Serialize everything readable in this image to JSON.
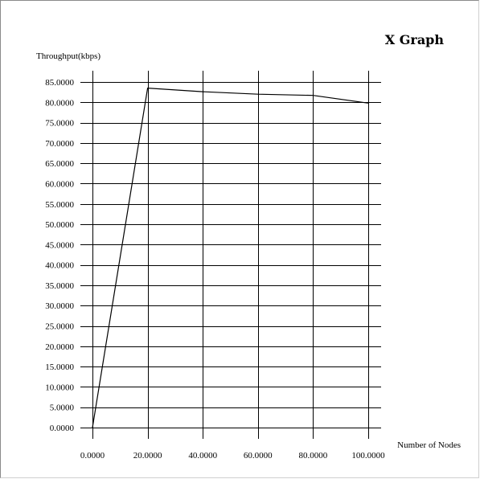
{
  "chart_data": {
    "type": "line",
    "title": "X Graph",
    "xlabel": "Number of Nodes",
    "ylabel": "Throughput(kbps)",
    "xlim": [
      0,
      100
    ],
    "ylim": [
      0,
      85
    ],
    "xticks": [
      0,
      20,
      40,
      60,
      80,
      100
    ],
    "yticks": [
      0,
      5,
      10,
      15,
      20,
      25,
      30,
      35,
      40,
      45,
      50,
      55,
      60,
      65,
      70,
      75,
      80,
      85
    ],
    "xtick_labels": [
      "0.0000",
      "20.0000",
      "40.0000",
      "60.0000",
      "80.0000",
      "100.0000"
    ],
    "ytick_labels": [
      "0.0000",
      "5.0000",
      "10.0000",
      "15.0000",
      "20.0000",
      "25.0000",
      "30.0000",
      "35.0000",
      "40.0000",
      "45.0000",
      "50.0000",
      "55.0000",
      "60.0000",
      "65.0000",
      "70.0000",
      "75.0000",
      "80.0000",
      "85.0000"
    ],
    "grid": true,
    "legend": "none",
    "series": [
      {
        "x": [
          0,
          20,
          40,
          60,
          80,
          100
        ],
        "y": [
          0,
          83.5,
          82.6,
          82.0,
          81.7,
          79.8
        ],
        "color": "#000000"
      }
    ]
  }
}
